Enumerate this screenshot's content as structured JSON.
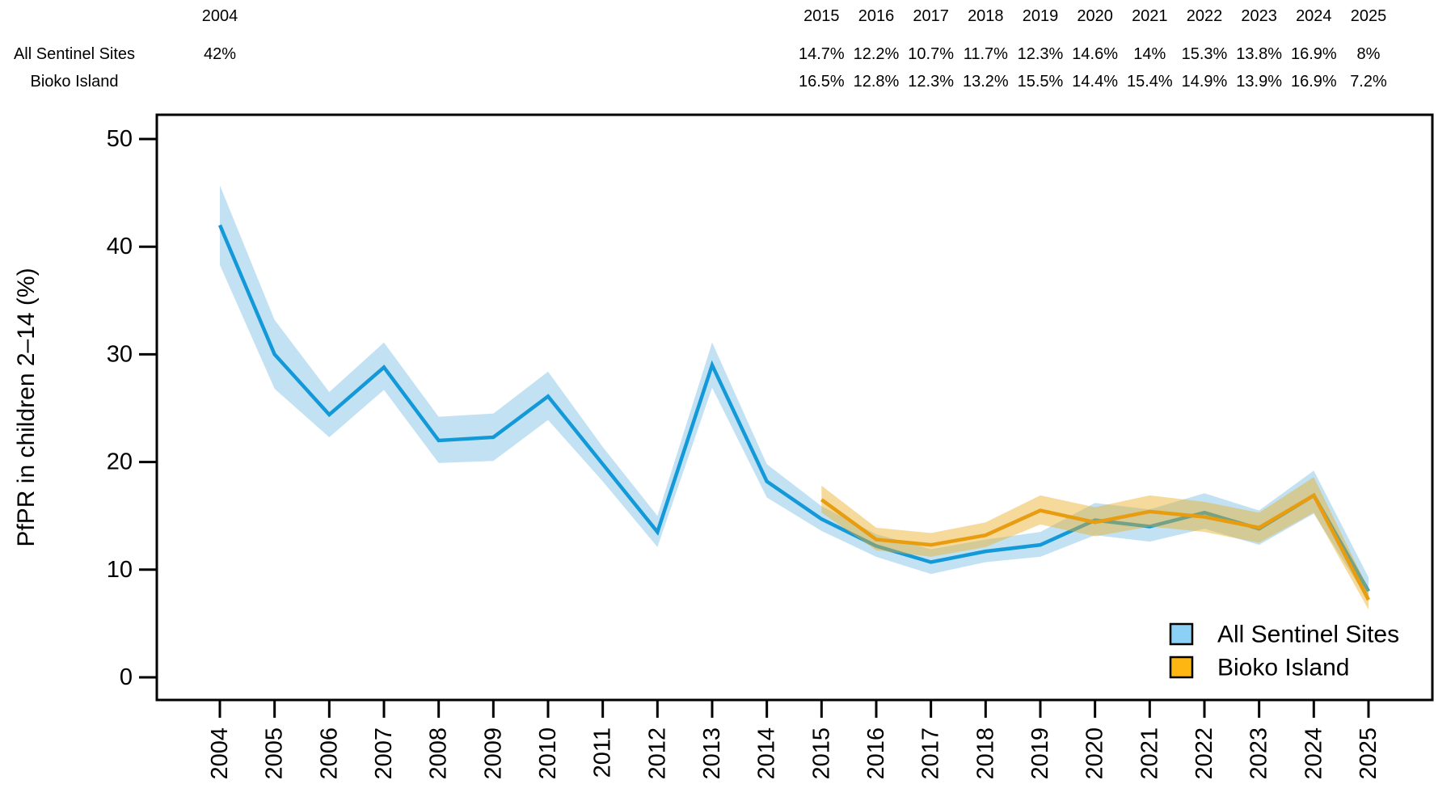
{
  "header": {
    "col_2004_label": "2004",
    "row1_label": "All Sentinel Sites",
    "row2_label": "Bioko Island",
    "row1_2004_value": "42%",
    "years": [
      "2015",
      "2016",
      "2017",
      "2018",
      "2019",
      "2020",
      "2021",
      "2022",
      "2023",
      "2024",
      "2025"
    ],
    "row1_values": [
      "14.7%",
      "12.2%",
      "10.7%",
      "11.7%",
      "12.3%",
      "14.6%",
      "14%",
      "15.3%",
      "13.8%",
      "16.9%",
      "8%"
    ],
    "row2_values": [
      "16.5%",
      "12.8%",
      "12.3%",
      "13.2%",
      "15.5%",
      "14.4%",
      "15.4%",
      "14.9%",
      "13.9%",
      "16.9%",
      "7.2%"
    ]
  },
  "chart_data": {
    "type": "line",
    "title": "",
    "xlabel": "",
    "ylabel": "PfPR in children 2–14 (%)",
    "ylim": [
      0,
      50
    ],
    "y_ticks": [
      0,
      10,
      20,
      30,
      40,
      50
    ],
    "x": [
      2004,
      2005,
      2006,
      2007,
      2008,
      2009,
      2010,
      2011,
      2012,
      2013,
      2014,
      2015,
      2016,
      2017,
      2018,
      2019,
      2020,
      2021,
      2022,
      2023,
      2024,
      2025
    ],
    "grid": false,
    "legend_position": "bottom-right",
    "series": [
      {
        "name": "All Sentinel Sites",
        "line_color": "#1499D8",
        "band_color": "#8FCAEB",
        "band_opacity": 0.55,
        "values": [
          42,
          30,
          24.4,
          28.8,
          22,
          22.3,
          26.1,
          19.8,
          13.5,
          29,
          18.2,
          14.7,
          12.2,
          10.7,
          11.7,
          12.3,
          14.6,
          14,
          15.3,
          13.8,
          16.9,
          8
        ],
        "lower": [
          38.3,
          26.8,
          22.3,
          26.7,
          19.9,
          20.1,
          23.9,
          18.2,
          12.1,
          26.9,
          16.7,
          13.6,
          11.2,
          9.6,
          10.7,
          11.2,
          13.2,
          12.6,
          13.8,
          12.3,
          15.2,
          7.1
        ],
        "upper": [
          45.7,
          33.2,
          26.5,
          31.1,
          24.2,
          24.5,
          28.4,
          21.4,
          15,
          31.1,
          19.8,
          15.9,
          13.3,
          11.9,
          12.8,
          13.5,
          16.2,
          15.6,
          17.1,
          15.5,
          19.2,
          9.3
        ]
      },
      {
        "name": "Bioko Island",
        "line_color": "#E89C10",
        "band_color": "#EBAD23",
        "band_opacity": 0.45,
        "values": [
          null,
          null,
          null,
          null,
          null,
          null,
          null,
          null,
          null,
          null,
          null,
          16.5,
          12.8,
          12.3,
          13.2,
          15.5,
          14.4,
          15.4,
          14.9,
          13.9,
          16.9,
          7.2
        ],
        "lower": [
          null,
          null,
          null,
          null,
          null,
          null,
          null,
          null,
          null,
          null,
          null,
          15.3,
          11.8,
          11.2,
          12.1,
          14.2,
          13.1,
          14,
          13.5,
          12.5,
          15.3,
          6.3
        ],
        "upper": [
          null,
          null,
          null,
          null,
          null,
          null,
          null,
          null,
          null,
          null,
          null,
          17.8,
          13.9,
          13.4,
          14.4,
          16.9,
          15.8,
          16.9,
          16.3,
          15.3,
          18.6,
          8.2
        ]
      }
    ]
  },
  "legend": {
    "items": [
      {
        "label": "All Sentinel Sites",
        "swatch": "#8DD0F5"
      },
      {
        "label": "Bioko Island",
        "swatch": "#FDB612"
      }
    ]
  }
}
